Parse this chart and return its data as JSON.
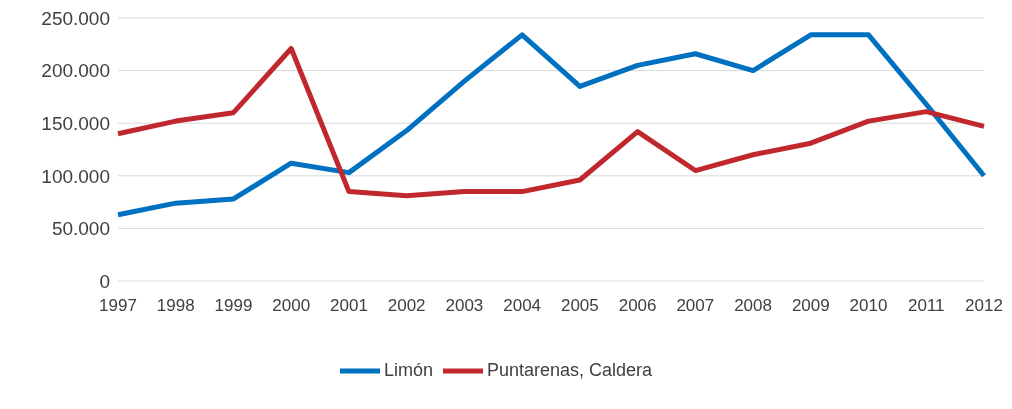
{
  "chart_data": {
    "type": "line",
    "categories": [
      "1997",
      "1998",
      "1999",
      "2000",
      "2001",
      "2002",
      "2003",
      "2004",
      "2005",
      "2006",
      "2007",
      "2008",
      "2009",
      "2010",
      "2011",
      "2012"
    ],
    "series": [
      {
        "name": "Limón",
        "color": "#0070c0",
        "values": [
          63000,
          74000,
          78000,
          112000,
          103000,
          143000,
          190000,
          234000,
          185000,
          205000,
          216000,
          200000,
          234000,
          234000,
          168000,
          100000
        ]
      },
      {
        "name": "Puntarenas, Caldera",
        "color": "#c0282e",
        "values": [
          140000,
          152000,
          160000,
          221000,
          85000,
          81000,
          85000,
          85000,
          96000,
          142000,
          105000,
          120000,
          131000,
          152000,
          161000,
          147000
        ]
      }
    ],
    "ylim": [
      0,
      250000
    ],
    "yticks": [
      {
        "value": 0,
        "label": "0"
      },
      {
        "value": 50000,
        "label": "50.000"
      },
      {
        "value": 100000,
        "label": "100.000"
      },
      {
        "value": 150000,
        "label": "150.000"
      },
      {
        "value": 200000,
        "label": "200.000"
      },
      {
        "value": 250000,
        "label": "250.000"
      }
    ],
    "grid": "y",
    "legend": "bottom",
    "marker": "none",
    "line_style": "solid"
  }
}
